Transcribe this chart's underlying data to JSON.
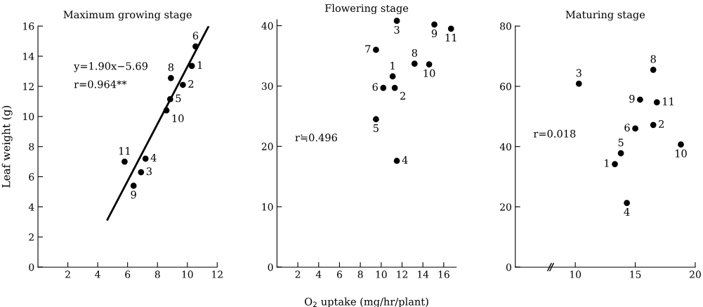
{
  "chart_data": [
    {
      "type": "scatter",
      "title": "Maximum growing stage",
      "ylabel": "Leaf weight (g)",
      "series": [
        {
          "color": "#000000",
          "marker": "circle",
          "x": [
            10.3,
            9.7,
            6.9,
            7.2,
            8.85,
            10.55,
            8.9,
            6.4,
            8.6,
            5.8
          ],
          "values": [
            13.35,
            12.1,
            6.3,
            7.2,
            11.15,
            14.65,
            12.55,
            5.4,
            10.4,
            7.0
          ]
        },
        {
          "type": "line",
          "color": "#000000",
          "marker": "none",
          "x": [
            4.65,
            11.4
          ],
          "values": [
            3.15,
            15.95
          ]
        }
      ],
      "annotations": [
        {
          "text": "1",
          "x": 10.3,
          "y": 13.35
        },
        {
          "text": "2",
          "x": 9.7,
          "y": 12.1
        },
        {
          "text": "3",
          "x": 6.9,
          "y": 6.3
        },
        {
          "text": "4",
          "x": 7.2,
          "y": 7.2
        },
        {
          "text": "5",
          "x": 8.85,
          "y": 11.15
        },
        {
          "text": "6",
          "x": 10.55,
          "y": 14.65
        },
        {
          "text": "8",
          "x": 8.9,
          "y": 12.55
        },
        {
          "text": "9",
          "x": 6.4,
          "y": 5.4
        },
        {
          "text": "10",
          "x": 8.6,
          "y": 10.4
        },
        {
          "text": "11",
          "x": 5.8,
          "y": 7.0
        },
        "y=1.90x−5.69",
        "r=0.964**"
      ],
      "xlim": [
        0,
        12
      ],
      "ylim": [
        0,
        16
      ],
      "xticks": [
        2,
        4,
        6,
        8,
        10,
        12
      ],
      "yticks": [
        0,
        2,
        4,
        6,
        8,
        10,
        12,
        14,
        16
      ]
    },
    {
      "type": "scatter",
      "title": "Flowering stage",
      "xlabel": "O$_{2}$ uptake (mg/hr/plant)",
      "series": [
        {
          "color": "#000000",
          "marker": "circle",
          "x": [
            11.1,
            11.3,
            11.5,
            11.5,
            9.5,
            10.2,
            9.5,
            13.2,
            15.1,
            14.6,
            16.7
          ],
          "values": [
            31.6,
            29.7,
            40.8,
            17.6,
            24.5,
            29.7,
            36.0,
            33.7,
            40.2,
            33.6,
            39.5
          ]
        }
      ],
      "annotations": [
        {
          "text": "1",
          "x": 11.1,
          "y": 31.6
        },
        {
          "text": "2",
          "x": 11.3,
          "y": 29.7
        },
        {
          "text": "3",
          "x": 11.5,
          "y": 40.8
        },
        {
          "text": "4",
          "x": 11.5,
          "y": 17.6
        },
        {
          "text": "5",
          "x": 9.5,
          "y": 24.5
        },
        {
          "text": "6",
          "x": 10.2,
          "y": 29.7
        },
        {
          "text": "7",
          "x": 9.5,
          "y": 36.0
        },
        {
          "text": "8",
          "x": 13.2,
          "y": 33.7
        },
        {
          "text": "9",
          "x": 15.1,
          "y": 40.2
        },
        {
          "text": "10",
          "x": 14.6,
          "y": 33.6
        },
        {
          "text": "11",
          "x": 16.7,
          "y": 39.5
        },
        "r≒0.496"
      ],
      "xlim": [
        0,
        17.2
      ],
      "ylim": [
        0,
        41
      ],
      "xticks": [
        2,
        4,
        6,
        8,
        10,
        12,
        14,
        16
      ],
      "yticks": [
        0,
        10,
        20,
        30,
        40
      ]
    },
    {
      "type": "scatter",
      "title": "Maturing stage",
      "series": [
        {
          "color": "#000000",
          "marker": "circle",
          "x": [
            13.3,
            16.5,
            10.3,
            14.3,
            13.8,
            15.0,
            16.5,
            15.4,
            18.8,
            16.8
          ],
          "values": [
            34.2,
            47.2,
            60.9,
            21.3,
            37.8,
            46.0,
            65.5,
            55.6,
            40.7,
            54.7
          ]
        }
      ],
      "annotations": [
        {
          "text": "1",
          "x": 13.3,
          "y": 34.2
        },
        {
          "text": "2",
          "x": 16.5,
          "y": 47.2
        },
        {
          "text": "3",
          "x": 10.3,
          "y": 60.9
        },
        {
          "text": "4",
          "x": 14.3,
          "y": 21.3
        },
        {
          "text": "5",
          "x": 13.8,
          "y": 37.8
        },
        {
          "text": "6",
          "x": 15.0,
          "y": 46.0
        },
        {
          "text": "8",
          "x": 16.5,
          "y": 65.5
        },
        {
          "text": "9",
          "x": 15.4,
          "y": 55.6
        },
        {
          "text": "10",
          "x": 18.8,
          "y": 40.7
        },
        {
          "text": "11",
          "x": 16.8,
          "y": 54.7
        },
        "r=0.018"
      ],
      "xlim": [
        5,
        20
      ],
      "ylim": [
        0,
        80
      ],
      "xticks": [
        10,
        15,
        20
      ],
      "yticks": [
        0,
        20,
        40,
        60,
        80
      ]
    }
  ]
}
